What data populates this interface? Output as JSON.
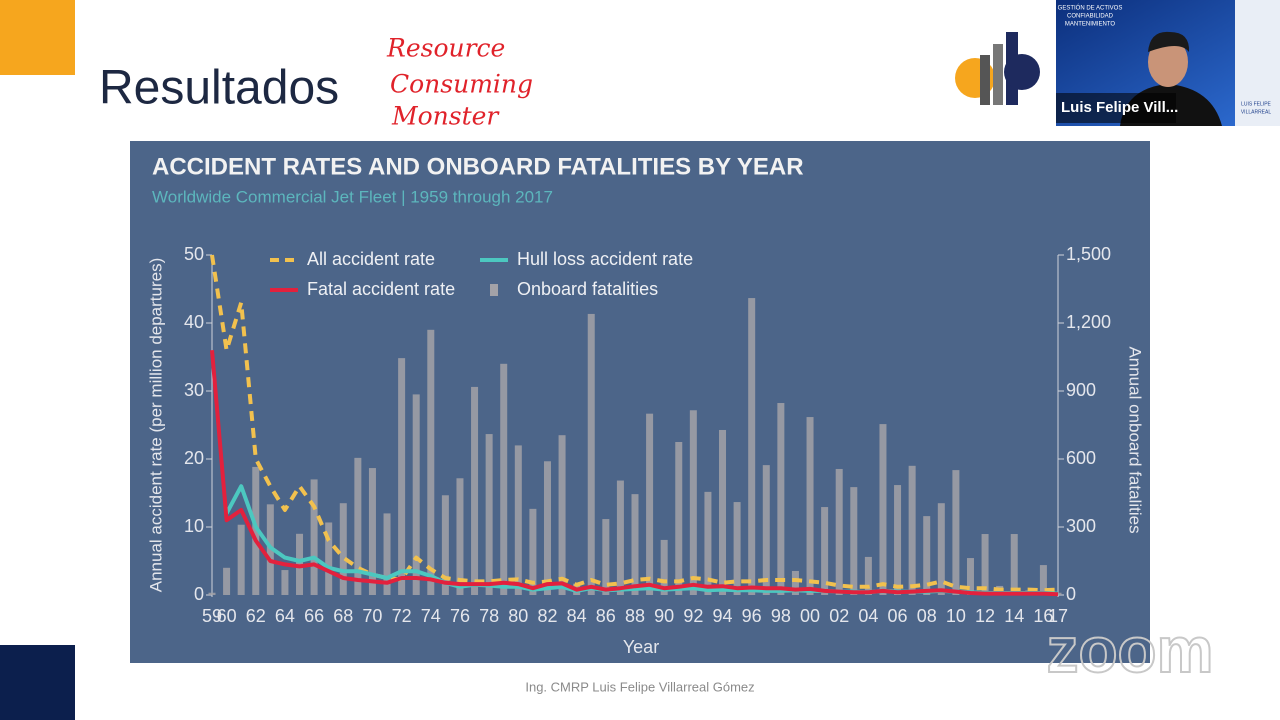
{
  "slide": {
    "title": "Resultados",
    "annotation": [
      "Resource",
      "Consuming",
      "Monster"
    ],
    "footer": "Ing. CMRP Luis Felipe Villarreal Gómez"
  },
  "video": {
    "name": "Luis Felipe Vill...",
    "banner": [
      "GESTIÓN DE ACTIVOS",
      "CONFIABILIDAD",
      "MANTENIMIENTO"
    ],
    "speaker": [
      "LUIS FELIPE",
      "VILLARREAL"
    ],
    "watermark": "zoom"
  },
  "chart_data": {
    "type": "combo",
    "title": "ACCIDENT RATES AND ONBOARD FATALITIES BY YEAR",
    "subtitle": "Worldwide Commercial Jet Fleet | 1959 through 2017",
    "x_label": "Year",
    "y_label": "Annual accident rate  (per million departures)",
    "y2_label": "Annual onboard fatalities",
    "categories": [
      "59",
      "60",
      null,
      "62",
      null,
      "64",
      null,
      "66",
      null,
      "68",
      null,
      "70",
      null,
      "72",
      null,
      "74",
      null,
      "76",
      null,
      "78",
      null,
      "80",
      null,
      "82",
      null,
      "84",
      null,
      "86",
      null,
      "88",
      null,
      "90",
      null,
      "92",
      null,
      "94",
      null,
      "96",
      null,
      "98",
      null,
      "00",
      null,
      "02",
      null,
      "04",
      null,
      "06",
      null,
      "08",
      null,
      "10",
      null,
      "12",
      null,
      "14",
      null,
      "16",
      "17"
    ],
    "ylim": [
      0,
      50
    ],
    "yticks": [
      0,
      10,
      20,
      30,
      40,
      50
    ],
    "y2lim": [
      0,
      1500
    ],
    "y2ticks": [
      0,
      300,
      600,
      900,
      {
        "value": 1200,
        "label": "1,200"
      },
      {
        "value": 1500,
        "label": "1,500"
      }
    ],
    "series": [
      {
        "name": "All accident rate",
        "type": "line",
        "dashed": true,
        "color": "#f2c14e",
        "values": [
          50,
          36,
          43,
          20,
          16,
          12.5,
          16,
          13,
          8,
          5.5,
          4,
          3,
          2.5,
          2.3,
          5.5,
          3.8,
          2.5,
          2.2,
          2,
          2,
          2.2,
          2.3,
          1.8,
          2,
          2.4,
          1.5,
          2.2,
          1.5,
          1.7,
          2.2,
          2.4,
          2,
          2,
          2.5,
          2.3,
          1.8,
          2,
          2,
          2.2,
          2.2,
          2.2,
          2,
          1.8,
          1.4,
          1.2,
          1.2,
          1.6,
          1.2,
          1.3,
          1.5,
          2,
          1.2,
          1,
          1,
          0.8,
          0.8,
          0.8,
          0.7,
          0.8
        ]
      },
      {
        "name": "Hull loss accident rate",
        "type": "line",
        "dashed": false,
        "color": "#4cc8c0",
        "values": [
          null,
          12,
          16,
          10,
          7,
          5.5,
          5,
          5.5,
          4,
          3.5,
          3.5,
          3,
          2.5,
          3.5,
          3.5,
          2.8,
          1.8,
          1.2,
          1.5,
          1.4,
          1.2,
          1.2,
          0.8,
          1,
          1.2,
          0.6,
          1,
          0.7,
          0.8,
          0.9,
          1,
          0.8,
          0.9,
          1,
          0.7,
          0.8,
          0.7,
          0.7,
          0.6,
          0.6,
          0.7,
          0.6,
          0.6,
          0.5,
          0.5,
          0.4,
          0.6,
          0.5,
          0.5,
          0.5,
          0.6,
          0.5,
          0.4,
          0.3,
          0.3,
          0.3,
          0.3,
          0.3,
          0.2
        ]
      },
      {
        "name": "Fatal accident rate",
        "type": "line",
        "dashed": false,
        "color": "#e2213d",
        "values": [
          36,
          11,
          12.5,
          8,
          5,
          4.5,
          4.2,
          4.5,
          3.5,
          2.5,
          2.2,
          2,
          1.8,
          2.5,
          2.5,
          2.3,
          1.8,
          1.6,
          1.6,
          1.6,
          1.8,
          1.6,
          1,
          1.6,
          1.7,
          0.8,
          1.2,
          0.8,
          1,
          1.3,
          1.5,
          1,
          1.2,
          1.5,
          1.2,
          1.3,
          1,
          1.1,
          1,
          1,
          0.8,
          0.9,
          0.6,
          0.5,
          0.4,
          0.4,
          0.6,
          0.4,
          0.5,
          0.6,
          0.7,
          0.5,
          0.3,
          0.2,
          0.2,
          0.2,
          0.2,
          0.2,
          0.1
        ]
      },
      {
        "name": "Onboard fatalities",
        "type": "bar",
        "axis": "y2",
        "color": "#a3a2a8",
        "values": [
          10,
          120,
          310,
          565,
          400,
          110,
          270,
          510,
          320,
          405,
          605,
          560,
          360,
          1045,
          885,
          1170,
          440,
          515,
          918,
          710,
          1020,
          660,
          380,
          590,
          705,
          50,
          1240,
          335,
          505,
          445,
          800,
          243,
          675,
          815,
          455,
          728,
          410,
          1310,
          573,
          847,
          106,
          785,
          388,
          556,
          476,
          168,
          754,
          485,
          570,
          348,
          405,
          551,
          163,
          269,
          40,
          269,
          20,
          132,
          10
        ]
      }
    ]
  }
}
